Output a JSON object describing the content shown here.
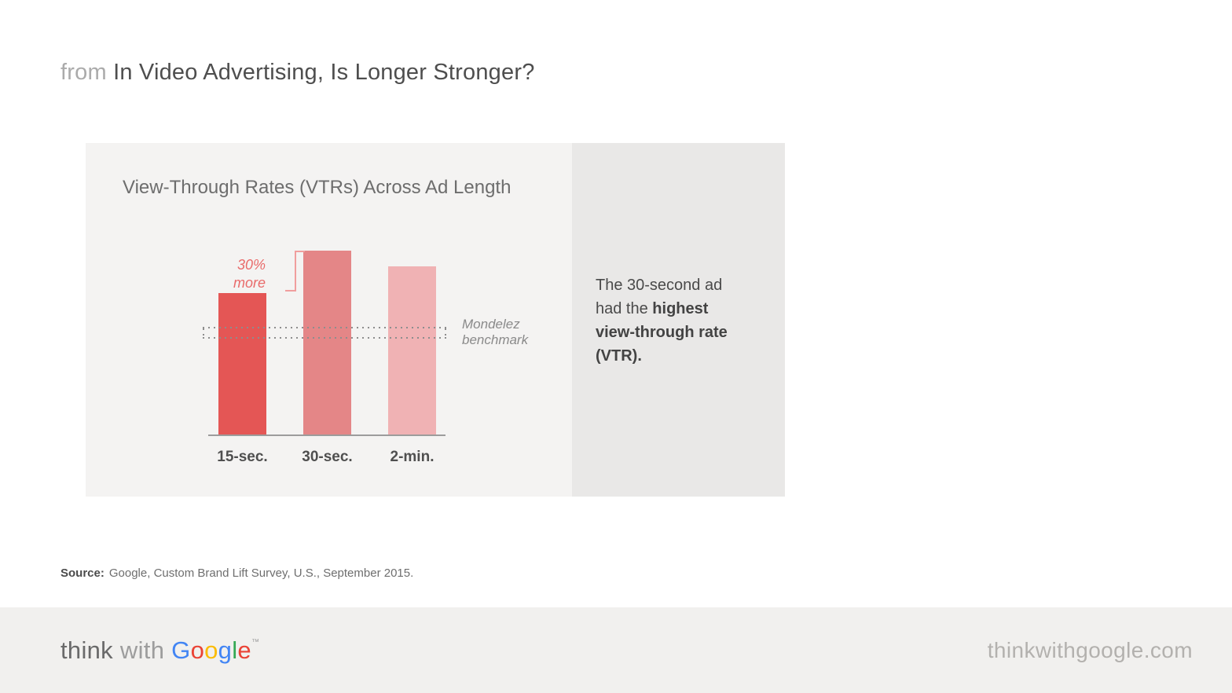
{
  "page": {
    "title_prefix": "from",
    "title": "In Video Advertising, Is Longer Stronger?"
  },
  "chart": {
    "title": "View-Through Rates (VTRs) Across Ad Length",
    "annotation": "30% more",
    "benchmark_label": "Mondelez benchmark"
  },
  "callout": {
    "normal": "The 30-second ad had the ",
    "bold": "highest view-through rate (VTR)."
  },
  "source": {
    "label": "Source:",
    "text": "Google, Custom Brand Lift Survey, U.S., September 2015."
  },
  "footer": {
    "logo": {
      "think": "think",
      "with": "with",
      "google_letters": [
        {
          "ch": "G",
          "color": "#4285F4"
        },
        {
          "ch": "o",
          "color": "#EA4335"
        },
        {
          "ch": "o",
          "color": "#FBBC05"
        },
        {
          "ch": "g",
          "color": "#4285F4"
        },
        {
          "ch": "l",
          "color": "#34A853"
        },
        {
          "ch": "e",
          "color": "#EA4335"
        }
      ],
      "tm": "™"
    },
    "site": "thinkwithgoogle.com"
  },
  "chart_data": {
    "type": "bar",
    "title": "View-Through Rates (VTRs) Across Ad Length",
    "categories": [
      "15-sec.",
      "30-sec.",
      "2-min."
    ],
    "values": [
      1.0,
      1.3,
      1.19
    ],
    "value_note": "relative VTR, no numeric axis shown; 30-sec is 30% more than 15-sec",
    "bar_colors": [
      "#e45655",
      "#e48687",
      "#f0b2b4"
    ],
    "benchmark": {
      "label": "Mondelez benchmark",
      "value": 0.72,
      "style": "double dotted line"
    },
    "annotation": {
      "text": "30% more",
      "between": [
        "15-sec.",
        "30-sec."
      ]
    },
    "xlabel": "",
    "ylabel": "",
    "ylim": [
      0,
      1.4
    ],
    "grid": false,
    "legend": false
  }
}
